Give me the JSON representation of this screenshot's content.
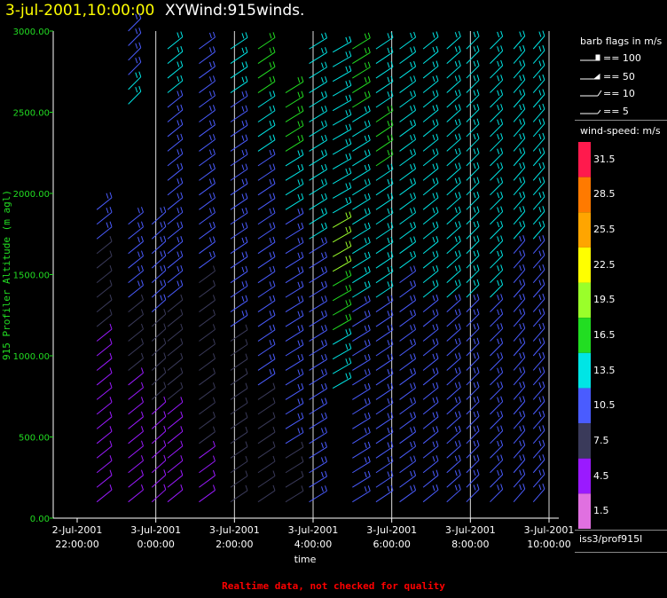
{
  "header": {
    "date": "3-jul-2001,10:00:00",
    "product": "XYWind:915winds."
  },
  "footer": {
    "note": "Realtime data, not checked for quality"
  },
  "legend": {
    "flags_title": "barb flags in m/s",
    "flags": [
      "== 100",
      "== 50",
      "== 10",
      "== 5"
    ],
    "speed_title": "wind-speed: m/s",
    "speed_labels": [
      "31.5",
      "28.5",
      "25.5",
      "22.5",
      "19.5",
      "16.5",
      "13.5",
      "10.5",
      "7.5",
      "4.5",
      "1.5"
    ],
    "speed_colors": [
      "#ff1a4d",
      "#ff7a00",
      "#ffa500",
      "#ffff00",
      "#9aff2a",
      "#22dd22",
      "#00e5e5",
      "#4a5cff",
      "#3a3a5a",
      "#9a1aff",
      "#e070e0"
    ],
    "station": "iss3/prof915l"
  },
  "chart_data": {
    "type": "wind-barb time-height",
    "ylabel": "915 Profiler Altitude (m agl)",
    "xlabel": "time",
    "ylim": [
      0,
      3000
    ],
    "yticks": [
      "0.00",
      "500.00",
      "1000.00",
      "1500.00",
      "2000.00",
      "2500.00",
      "3000.00"
    ],
    "xticks": [
      {
        "date": "2-Jul-2001",
        "time": "22:00:00"
      },
      {
        "date": "3-Jul-2001",
        "time": "0:00:00"
      },
      {
        "date": "3-Jul-2001",
        "time": "2:00:00"
      },
      {
        "date": "3-Jul-2001",
        "time": "4:00:00"
      },
      {
        "date": "3-Jul-2001",
        "time": "6:00:00"
      },
      {
        "date": "3-Jul-2001",
        "time": "8:00:00"
      },
      {
        "date": "3-Jul-2001",
        "time": "10:00:00"
      }
    ],
    "time_hours": [
      22,
      24,
      26,
      28,
      30,
      32,
      34
    ],
    "grid": "vertical lines at ticks",
    "columns": [
      {
        "t": 22.5,
        "bottom": 100,
        "top": 1900,
        "dir": 240,
        "speeds": [
          4,
          4,
          5,
          6,
          8,
          9,
          10
        ]
      },
      {
        "t": 23.3,
        "bottom": 100,
        "top": 1850,
        "dir": 240,
        "speeds": [
          4,
          5,
          6,
          7,
          9,
          10,
          11
        ]
      },
      {
        "t": 23.3,
        "bottom": 2550,
        "top": 3000,
        "dir": 250,
        "speeds": [
          13,
          12,
          12
        ]
      },
      {
        "t": 23.9,
        "bottom": 100,
        "top": 1850,
        "dir": 245,
        "speeds": [
          5,
          6,
          7,
          8,
          10,
          11
        ]
      },
      {
        "t": 24.3,
        "bottom": 100,
        "top": 2950,
        "dir": 240,
        "speeds": [
          5,
          6,
          8,
          9,
          10,
          11,
          12,
          12,
          13
        ]
      },
      {
        "t": 25.1,
        "bottom": 100,
        "top": 2950,
        "dir": 235,
        "speeds": [
          6,
          7,
          8,
          9,
          10,
          11,
          12,
          12
        ]
      },
      {
        "t": 25.9,
        "bottom": 100,
        "top": 2900,
        "dir": 230,
        "speeds": [
          7,
          8,
          9,
          10,
          10,
          11,
          12,
          14
        ]
      },
      {
        "t": 26.6,
        "bottom": 100,
        "top": 2900,
        "dir": 230,
        "speeds": [
          8,
          9,
          10,
          10,
          11,
          12,
          15,
          16
        ]
      },
      {
        "t": 27.3,
        "bottom": 100,
        "top": 2700,
        "dir": 225,
        "speeds": [
          9,
          10,
          10,
          11,
          12,
          14,
          16
        ]
      },
      {
        "t": 27.9,
        "bottom": 100,
        "top": 2950,
        "dir": 225,
        "speeds": [
          10,
          10,
          11,
          12,
          13,
          15,
          14
        ]
      },
      {
        "t": 28.5,
        "bottom": 800,
        "top": 2950,
        "dir": 220,
        "speeds": [
          15,
          16,
          20,
          14,
          13,
          14
        ]
      },
      {
        "t": 29.0,
        "bottom": 100,
        "top": 2900,
        "dir": 225,
        "speeds": [
          11,
          12,
          12,
          13,
          14,
          15,
          16
        ]
      },
      {
        "t": 29.6,
        "bottom": 100,
        "top": 2950,
        "dir": 230,
        "speeds": [
          10,
          11,
          12,
          13,
          14,
          16,
          15
        ]
      },
      {
        "t": 30.2,
        "bottom": 100,
        "top": 2950,
        "dir": 235,
        "speeds": [
          10,
          10,
          11,
          12,
          13,
          14,
          14,
          13
        ]
      },
      {
        "t": 30.8,
        "bottom": 100,
        "top": 2950,
        "dir": 240,
        "speeds": [
          10,
          11,
          12,
          13,
          14,
          14,
          13
        ]
      },
      {
        "t": 31.4,
        "bottom": 100,
        "top": 2950,
        "dir": 245,
        "speeds": [
          10,
          11,
          12,
          13,
          14,
          14,
          13
        ]
      },
      {
        "t": 31.9,
        "bottom": 100,
        "top": 2950,
        "dir": 250,
        "speeds": [
          10,
          11,
          12,
          13,
          14,
          14,
          13
        ]
      },
      {
        "t": 32.5,
        "bottom": 100,
        "top": 2950,
        "dir": 250,
        "speeds": [
          10,
          11,
          12,
          13,
          13,
          14,
          13
        ]
      },
      {
        "t": 33.1,
        "bottom": 100,
        "top": 2900,
        "dir": 255,
        "speeds": [
          10,
          11,
          12,
          12,
          13,
          14,
          13
        ]
      },
      {
        "t": 33.6,
        "bottom": 100,
        "top": 2950,
        "dir": 255,
        "speeds": [
          10,
          11,
          12,
          12,
          13,
          14,
          13
        ]
      }
    ]
  }
}
